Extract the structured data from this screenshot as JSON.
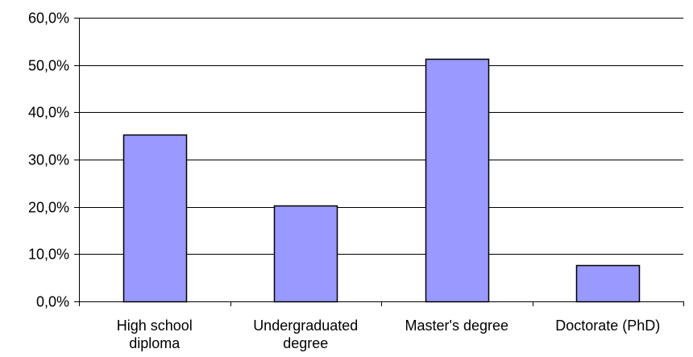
{
  "chart_data": {
    "type": "bar",
    "categories": [
      [
        "High school",
        "diploma"
      ],
      [
        "Undergraduated",
        "degree"
      ],
      [
        "Master's degree"
      ],
      [
        "Doctorate (PhD)"
      ]
    ],
    "values": [
      35.2,
      20.3,
      51.3,
      7.6
    ],
    "ylim": [
      0,
      60
    ],
    "ytick_values": [
      0,
      10,
      20,
      30,
      40,
      50,
      60
    ],
    "ytick_labels": [
      "0,0%",
      "10,0%",
      "20,0%",
      "30,0%",
      "40,0%",
      "50,0%",
      "60,0%"
    ],
    "grid": true,
    "legend": "none",
    "title": "",
    "xlabel": "",
    "ylabel": "",
    "bar_color": "#9999ff",
    "bar_edge_color": "#000000",
    "grid_color": "#000000"
  }
}
